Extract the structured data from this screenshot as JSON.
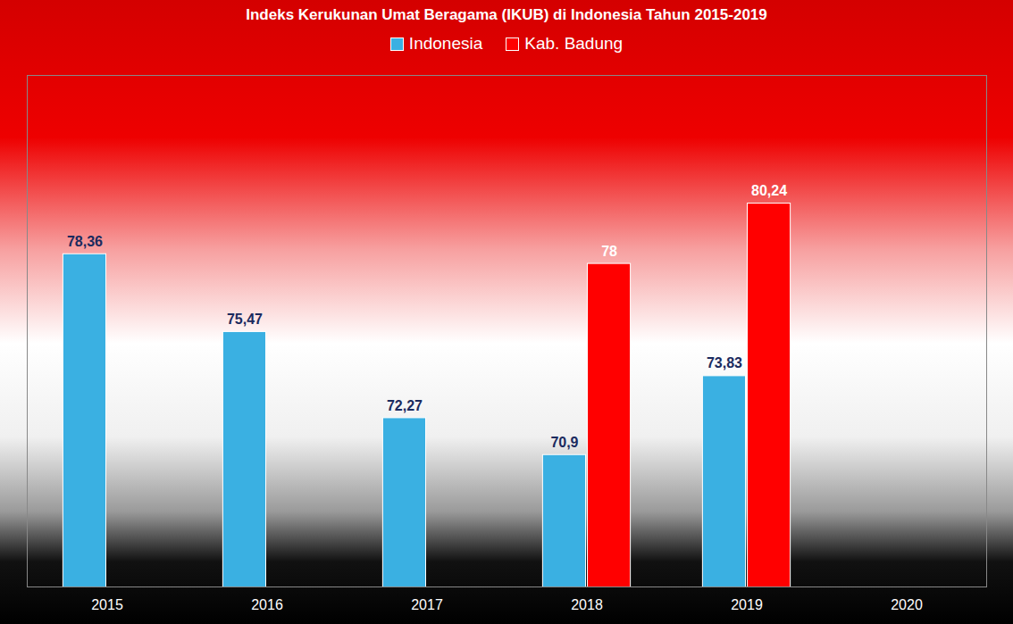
{
  "chart_data": {
    "type": "bar",
    "title": "Indeks Kerukunan Umat Beragama (IKUB) di Indonesia Tahun 2015-2019",
    "categories": [
      "2015",
      "2016",
      "2017",
      "2018",
      "2019",
      "2020"
    ],
    "series": [
      {
        "name": "Indonesia",
        "color": "#3ab0e2",
        "values": [
          78.36,
          75.47,
          72.27,
          70.9,
          73.83,
          null
        ],
        "value_labels": [
          "78,36",
          "75,47",
          "72,27",
          "70,9",
          "73,83",
          null
        ]
      },
      {
        "name": "Kab. Badung",
        "color": "#ff0000",
        "values": [
          null,
          null,
          null,
          78,
          80.24,
          null
        ],
        "value_labels": [
          null,
          null,
          null,
          "78",
          "80,24",
          null
        ]
      }
    ],
    "ylim": [
      66,
      85
    ],
    "yticks": [],
    "tick_labels": "x",
    "data_labels": true,
    "legend": "top",
    "grid": false
  }
}
